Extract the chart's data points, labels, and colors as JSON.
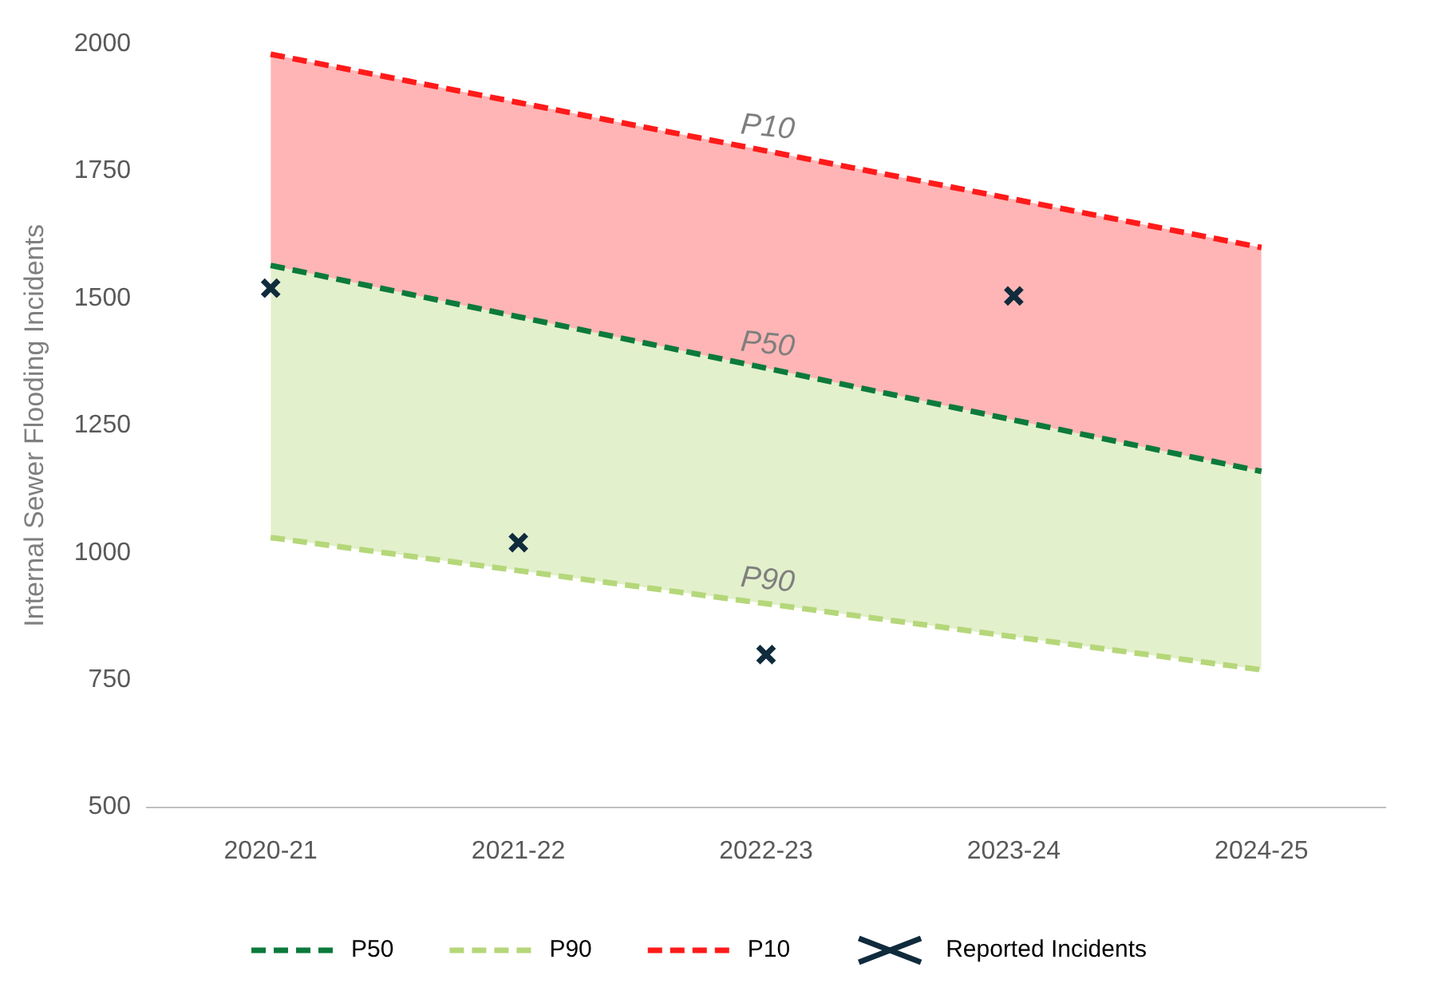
{
  "chart_data": {
    "type": "line",
    "ylabel": "Internal Sewer Flooding Incidents",
    "categories": [
      "2020-21",
      "2021-22",
      "2022-23",
      "2023-24",
      "2024-25"
    ],
    "series": [
      {
        "name": "P50",
        "color": "#0b7a3b",
        "line_style": "dashed",
        "values": [
          1565,
          1464,
          1363,
          1261,
          1160
        ]
      },
      {
        "name": "P90",
        "color": "#b5d77a",
        "line_style": "dashed",
        "values": [
          1030,
          965,
          900,
          835,
          770
        ],
        "lower": [
          1030,
          965,
          900,
          835,
          770
        ],
        "upper": [
          1565,
          1464,
          1363,
          1261,
          1160
        ]
      },
      {
        "name": "P10",
        "color": "#ff1a1a",
        "line_style": "dashed",
        "values": [
          1980,
          1885,
          1790,
          1695,
          1600
        ],
        "lower": [
          1565,
          1464,
          1363,
          1261,
          1160
        ],
        "upper": [
          1980,
          1885,
          1790,
          1695,
          1600
        ]
      },
      {
        "name": "Reported Incidents",
        "type": "scatter",
        "marker": "cross",
        "color": "#0f2b3c",
        "values": [
          1520,
          1020,
          800,
          1505,
          null
        ]
      }
    ],
    "ylim": [
      500,
      2000
    ],
    "yticks": [
      500,
      750,
      1000,
      1250,
      1500,
      1750,
      2000
    ],
    "grid": false,
    "legend": "bottom",
    "annotations": [
      {
        "text": "P10",
        "x": "2022-23",
        "y": 1790
      },
      {
        "text": "P50",
        "x": "2022-23",
        "y": 1363
      },
      {
        "text": "P90",
        "x": "2022-23",
        "y": 900
      }
    ]
  }
}
